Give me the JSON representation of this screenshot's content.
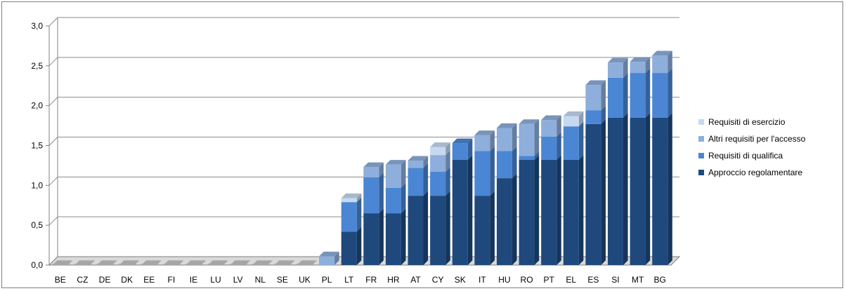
{
  "chart_data": {
    "type": "bar",
    "stacked": true,
    "style": "3d",
    "categories": [
      "BE",
      "CZ",
      "DE",
      "DK",
      "EE",
      "FI",
      "IE",
      "LU",
      "LV",
      "NL",
      "SE",
      "UK",
      "PL",
      "LT",
      "FR",
      "HR",
      "AT",
      "CY",
      "SK",
      "IT",
      "HU",
      "RO",
      "PT",
      "EL",
      "ES",
      "SI",
      "MT",
      "BG"
    ],
    "series": [
      {
        "name": "Approccio regolamentare",
        "color": "#1f497d",
        "values": [
          0,
          0,
          0,
          0,
          0,
          0,
          0,
          0,
          0,
          0,
          0,
          0,
          0,
          0.42,
          0.65,
          0.65,
          0.87,
          0.87,
          1.32,
          0.87,
          1.09,
          1.32,
          1.32,
          1.32,
          1.77,
          1.85,
          1.85,
          1.85
        ]
      },
      {
        "name": "Requisiti di qualifica",
        "color": "#4a86d3",
        "values": [
          0,
          0,
          0,
          0,
          0,
          0,
          0,
          0,
          0,
          0,
          0,
          0,
          0,
          0.37,
          0.45,
          0.32,
          0.35,
          0.3,
          0.21,
          0.56,
          0.34,
          0.05,
          0.29,
          0.42,
          0.17,
          0.5,
          0.56,
          0.56
        ]
      },
      {
        "name": "Altri requisiti per l'accesso",
        "color": "#8eaedb",
        "values": [
          0,
          0,
          0,
          0,
          0,
          0,
          0,
          0,
          0,
          0,
          0,
          0,
          0.11,
          0,
          0.13,
          0.29,
          0.09,
          0.21,
          0,
          0.2,
          0.29,
          0.4,
          0.21,
          0,
          0.32,
          0.19,
          0.14,
          0.22
        ]
      },
      {
        "name": "Requisiti di esercizio",
        "color": "#c6d9f1",
        "values": [
          0,
          0,
          0,
          0,
          0,
          0,
          0,
          0,
          0,
          0,
          0,
          0,
          0,
          0.05,
          0,
          0,
          0,
          0.1,
          0,
          0,
          0,
          0,
          0,
          0.13,
          0,
          0,
          0,
          0
        ]
      }
    ],
    "ylim": [
      0,
      3
    ],
    "yticks": [
      "0,0",
      "0,5",
      "1,0",
      "1,5",
      "2,0",
      "2,5",
      "3,0"
    ],
    "ytick_values": [
      0,
      0.5,
      1,
      1.5,
      2,
      2.5,
      3
    ],
    "grid": true,
    "legend_position": "right",
    "legend_order": [
      "Requisiti di esercizio",
      "Altri requisiti per l'accesso",
      "Requisiti di qualifica",
      "Approccio regolamentare"
    ]
  }
}
